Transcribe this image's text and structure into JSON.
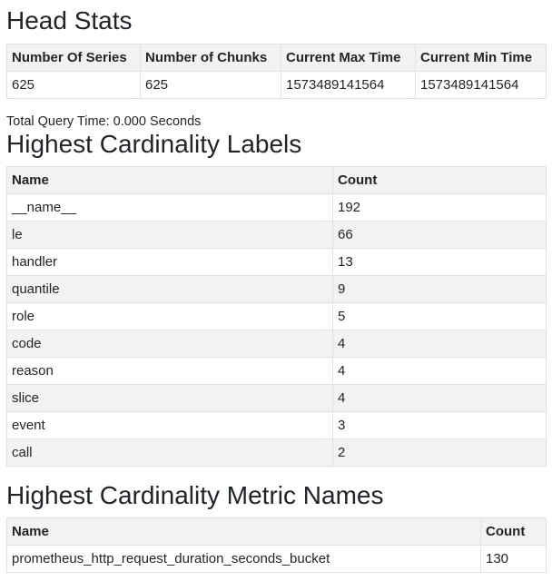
{
  "head_stats": {
    "title": "Head Stats",
    "headers": [
      "Number Of Series",
      "Number of Chunks",
      "Current Max Time",
      "Current Min Time"
    ],
    "values": [
      "625",
      "625",
      "1573489141564",
      "1573489141564"
    ]
  },
  "query_time": "Total Query Time: 0.000 Seconds",
  "labels": {
    "title": "Highest Cardinality Labels",
    "headers": [
      "Name",
      "Count"
    ],
    "rows": [
      [
        "__name__",
        "192"
      ],
      [
        "le",
        "66"
      ],
      [
        "handler",
        "13"
      ],
      [
        "quantile",
        "9"
      ],
      [
        "role",
        "5"
      ],
      [
        "code",
        "4"
      ],
      [
        "reason",
        "4"
      ],
      [
        "slice",
        "4"
      ],
      [
        "event",
        "3"
      ],
      [
        "call",
        "2"
      ]
    ]
  },
  "metrics": {
    "title": "Highest Cardinality Metric Names",
    "headers": [
      "Name",
      "Count"
    ],
    "rows": [
      [
        "prometheus_http_request_duration_seconds_bucket",
        "130"
      ]
    ]
  }
}
